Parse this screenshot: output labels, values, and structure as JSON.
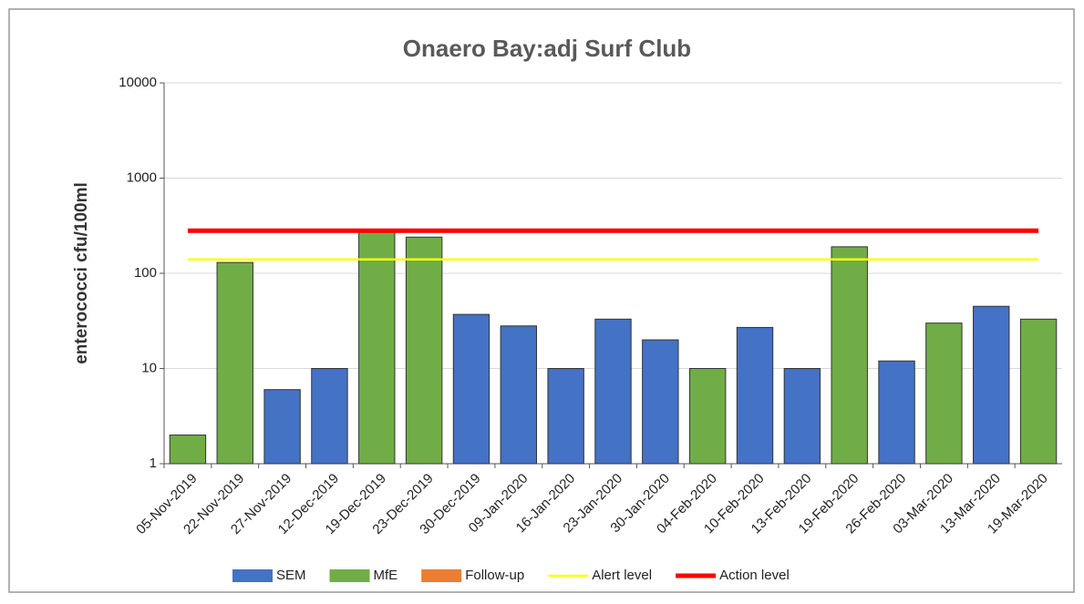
{
  "chart_data": {
    "type": "bar",
    "title": "Onaero Bay:adj Surf Club",
    "y_label": "enterococci  cfu/100ml",
    "categories": [
      "05-Nov-2019",
      "22-Nov-2019",
      "27-Nov-2019",
      "12-Dec-2019",
      "19-Dec-2019",
      "23-Dec-2019",
      "30-Dec-2019",
      "09-Jan-2020",
      "16-Jan-2020",
      "23-Jan-2020",
      "30-Jan-2020",
      "04-Feb-2020",
      "10-Feb-2020",
      "13-Feb-2020",
      "19-Feb-2020",
      "26-Feb-2020",
      "03-Mar-2020",
      "13-Mar-2020",
      "19-Mar-2020"
    ],
    "series": [
      {
        "name": "SEM",
        "type": "bar",
        "color": "#4472c4",
        "values": [
          null,
          null,
          6,
          10,
          null,
          null,
          37,
          28,
          10,
          33,
          20,
          null,
          27,
          10,
          null,
          12,
          null,
          45,
          null
        ]
      },
      {
        "name": "MfE",
        "type": "bar",
        "color": "#70ad47",
        "values": [
          2,
          130,
          null,
          null,
          280,
          240,
          null,
          null,
          null,
          null,
          null,
          10,
          null,
          null,
          190,
          null,
          30,
          null,
          33
        ]
      },
      {
        "name": "Follow-up",
        "type": "bar",
        "color": "#ed7d31",
        "values": [
          null,
          null,
          null,
          null,
          null,
          null,
          null,
          null,
          null,
          null,
          null,
          null,
          null,
          null,
          null,
          null,
          null,
          null,
          null
        ]
      },
      {
        "name": "Alert level",
        "type": "line",
        "color": "#ffff00",
        "values": [
          140,
          140,
          140,
          140,
          140,
          140,
          140,
          140,
          140,
          140,
          140,
          140,
          140,
          140,
          140,
          140,
          140,
          140,
          140
        ]
      },
      {
        "name": "Action level",
        "type": "line",
        "color": "#ff0000",
        "values": [
          280,
          280,
          280,
          280,
          280,
          280,
          280,
          280,
          280,
          280,
          280,
          280,
          280,
          280,
          280,
          280,
          280,
          280,
          280
        ]
      }
    ],
    "log_y": true,
    "ylim": [
      1,
      10000
    ],
    "yticks": [
      1,
      10,
      100,
      1000,
      10000
    ],
    "grid": true,
    "legend": "bottom"
  }
}
